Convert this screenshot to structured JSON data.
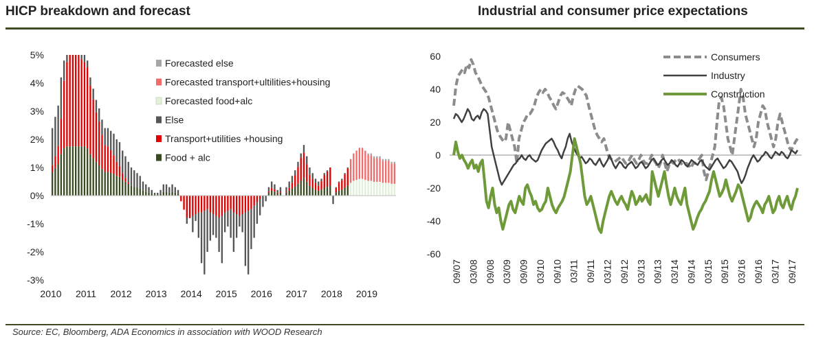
{
  "left_title": "HICP breakdown and forecast",
  "right_title": "Industrial and consumer price expectations",
  "source": "Source: EC, Bloomberg, ADA Economics in association with WOOD Research",
  "chart_data": [
    {
      "type": "bar",
      "title": "HICP breakdown and forecast",
      "stacked": true,
      "ylim": [
        -3,
        5
      ],
      "yticks": [
        "-3%",
        "-2%",
        "-1%",
        "0%",
        "1%",
        "2%",
        "3%",
        "4%",
        "5%"
      ],
      "ytick_values": [
        -3,
        -2,
        -1,
        0,
        1,
        2,
        3,
        4,
        5
      ],
      "xticks": [
        "2010",
        "2011",
        "2012",
        "2013",
        "2014",
        "2015",
        "2016",
        "2017",
        "2018",
        "2019"
      ],
      "legend_position": "top-right",
      "legend": [
        {
          "name": "Forecasted else",
          "color": "#a6a6a6"
        },
        {
          "name": "Forecasted transport+ultilities+housing",
          "color": "#f26b6b"
        },
        {
          "name": "Forecasted food+alc",
          "color": "#e2efda"
        },
        {
          "name": "Else",
          "color": "#555555"
        },
        {
          "name": "Transport+utilities +housing",
          "color": "#e00000"
        },
        {
          "name": "Food + alc",
          "color": "#3a4a20"
        }
      ],
      "x_start": "2010-01",
      "frequency": "monthly",
      "forecast_start": "2018-07",
      "totals": [
        2.4,
        2.8,
        3.2,
        4.2,
        4.8,
        5.0,
        5.0,
        5.0,
        5.0,
        5.0,
        5.0,
        5.0,
        4.8,
        4.2,
        3.8,
        3.4,
        3.1,
        2.7,
        2.4,
        2.4,
        2.3,
        2.2,
        2.0,
        1.9,
        1.6,
        1.4,
        1.2,
        1.0,
        0.9,
        0.8,
        0.7,
        0.5,
        0.4,
        0.3,
        0.2,
        0.1,
        0.1,
        0.2,
        0.4,
        0.4,
        0.3,
        0.4,
        0.3,
        0.2,
        -0.2,
        -0.5,
        -1.0,
        -0.8,
        -1.3,
        -0.9,
        -1.5,
        -2.4,
        -2.8,
        -2.0,
        -1.6,
        -1.4,
        -1.5,
        -2.0,
        -2.4,
        -1.3,
        -1.1,
        -1.5,
        -2.0,
        -1.5,
        -1.1,
        -1.3,
        -2.5,
        -2.8,
        -1.9,
        -1.5,
        -1.0,
        -0.7,
        -0.4,
        -0.2,
        0.3,
        0.5,
        0.4,
        0.2,
        0.3,
        0.0,
        0.3,
        0.5,
        0.7,
        0.9,
        1.2,
        1.5,
        1.8,
        1.4,
        1.0,
        0.8,
        0.6,
        0.5,
        0.6,
        0.8,
        0.9,
        1.0,
        -0.3,
        0.3,
        0.5,
        0.6,
        0.8,
        1.0,
        1.3,
        1.5,
        1.6,
        1.7,
        1.7,
        1.6,
        1.5,
        1.5,
        1.4,
        1.4,
        1.4,
        1.3,
        1.3,
        1.3,
        1.2,
        1.2
      ],
      "transport_share": [
        0.1,
        0.15,
        0.2,
        0.3,
        0.5,
        0.6,
        0.68,
        0.7,
        0.68,
        0.65,
        0.62,
        0.6,
        0.6,
        0.58,
        0.55,
        0.52,
        0.5,
        0.45,
        0.4,
        0.38,
        0.35,
        0.3,
        0.25,
        0.2,
        0.15,
        0.1,
        0.05,
        0.0,
        -0.05,
        -0.1,
        -0.2,
        -0.25,
        -0.3,
        -0.35,
        -0.4,
        -0.45,
        -0.5,
        -0.4,
        -0.3,
        -0.2,
        -0.3,
        -0.4,
        -0.45,
        -0.5,
        -0.55,
        -0.6,
        -0.65,
        -0.7,
        -0.6,
        -0.55,
        -0.5,
        -0.5,
        -0.45,
        -0.4,
        -0.5,
        -0.55,
        -0.6,
        -0.65,
        -0.6,
        -0.5,
        -0.45,
        -0.4,
        -0.5,
        -0.55,
        -0.6,
        -0.55,
        -0.5,
        -0.45,
        -0.4,
        -0.3,
        -0.2,
        -0.1,
        0.0,
        0.1,
        0.15,
        0.2,
        0.2,
        0.15,
        0.1,
        0.05,
        0.1,
        0.2,
        0.3,
        0.45,
        0.5,
        0.55,
        0.5,
        0.45,
        0.4,
        0.4,
        0.4,
        0.35,
        0.5,
        0.55,
        0.6,
        0.65,
        0.55,
        0.55,
        0.55,
        0.55,
        0.6,
        0.62,
        0.65,
        0.68,
        0.68,
        0.68,
        0.66,
        0.64,
        0.62,
        0.6,
        0.6,
        0.6,
        0.6,
        0.6,
        0.6,
        0.6,
        0.6,
        0.6,
        0.6,
        0.6
      ]
    },
    {
      "type": "line",
      "title": "Industrial and consumer price expectations",
      "ylim": [
        -60,
        60
      ],
      "yticks": [
        -60,
        -40,
        -20,
        0,
        20,
        40,
        60
      ],
      "xticks": [
        "09/07",
        "03/08",
        "09/08",
        "03/09",
        "09/09",
        "03/10",
        "09/10",
        "03/11",
        "09/11",
        "03/12",
        "09/12",
        "03/13",
        "09/13",
        "03/14",
        "09/14",
        "03/15",
        "09/15",
        "03/16",
        "09/16",
        "03/17",
        "09/17"
      ],
      "legend_position": "top-right",
      "series": [
        {
          "name": "Consumers",
          "color": "#8c8c8c",
          "style": "dashed",
          "values": [
            30,
            42,
            48,
            50,
            52,
            50,
            55,
            53,
            58,
            55,
            50,
            48,
            45,
            42,
            40,
            38,
            35,
            30,
            25,
            20,
            15,
            12,
            10,
            8,
            10,
            20,
            15,
            10,
            5,
            -5,
            10,
            15,
            20,
            22,
            25,
            25,
            27,
            30,
            35,
            38,
            40,
            38,
            40,
            38,
            35,
            33,
            30,
            28,
            32,
            36,
            38,
            37,
            35,
            33,
            30,
            36,
            40,
            42,
            41,
            40,
            38,
            36,
            30,
            25,
            20,
            15,
            12,
            10,
            8,
            10,
            5,
            0,
            -2,
            -3,
            -4,
            -3,
            -2,
            -1,
            -3,
            -5,
            -5,
            -2,
            0,
            -3,
            -5,
            -3,
            0,
            -3,
            -5,
            -5,
            -3,
            0,
            -3,
            -5,
            -8,
            -5,
            0,
            -5,
            -10,
            -6,
            -4,
            -5,
            -3,
            -2,
            -4,
            -6,
            -5,
            -5,
            -6,
            -8,
            -5,
            -5,
            -4,
            -2,
            0,
            -10,
            -15,
            -10,
            -5,
            0,
            5,
            20,
            33,
            35,
            30,
            20,
            10,
            5,
            0,
            10,
            20,
            30,
            40,
            35,
            25,
            20,
            15,
            10,
            5,
            10,
            20,
            25,
            30,
            28,
            20,
            15,
            10,
            5,
            10,
            20,
            25,
            20,
            15,
            10,
            5,
            3,
            5,
            8,
            10
          ]
        },
        {
          "name": "Industry",
          "color": "#404040",
          "style": "solid",
          "values": [
            22,
            25,
            24,
            22,
            20,
            22,
            25,
            28,
            26,
            22,
            21,
            23,
            24,
            22,
            26,
            28,
            27,
            25,
            15,
            5,
            0,
            -5,
            -10,
            -15,
            -18,
            -16,
            -14,
            -12,
            -10,
            -8,
            -6,
            -5,
            -3,
            -2,
            0,
            -2,
            -3,
            -1,
            0,
            -2,
            -3,
            -4,
            -3,
            0,
            3,
            5,
            7,
            8,
            9,
            10,
            8,
            5,
            3,
            0,
            -2,
            2,
            5,
            10,
            13,
            8,
            5,
            2,
            0,
            -2,
            -1,
            -3,
            -5,
            -4,
            -2,
            -3,
            -5,
            -6,
            -4,
            -2,
            -5,
            -7,
            -5,
            -3,
            0,
            -3,
            -6,
            -8,
            -6,
            -4,
            -5,
            -7,
            -8,
            -6,
            -5,
            -4,
            -6,
            -8,
            -7,
            -5,
            -4,
            -6,
            -8,
            -7,
            -5,
            -3,
            -2,
            -4,
            -6,
            -5,
            -3,
            -2,
            -4,
            -6,
            -5,
            -3,
            -4,
            -6,
            -7,
            -5,
            -3,
            -4,
            -6,
            -7,
            -5,
            -3,
            -4,
            -5,
            -6,
            -4,
            -3,
            -5,
            -7,
            -8,
            -9,
            -7,
            -5,
            -3,
            -2,
            -4,
            -6,
            -8,
            -7,
            -5,
            -3,
            -4,
            -6,
            -8,
            -10,
            -14,
            -17,
            -15,
            -12,
            -8,
            -5,
            -2,
            0,
            -2,
            -4,
            -3,
            -1,
            0,
            2,
            1,
            -1,
            -2,
            0,
            2,
            1,
            0,
            2,
            1,
            -1,
            -2,
            0,
            3,
            2,
            1,
            3
          ]
        },
        {
          "name": "Construction",
          "color": "#6f9a3a",
          "style": "solid",
          "values": [
            0,
            8,
            2,
            -2,
            0,
            -3,
            -5,
            -8,
            -5,
            -3,
            -8,
            -6,
            -10,
            -5,
            -3,
            -15,
            -28,
            -32,
            -25,
            -20,
            -30,
            -35,
            -32,
            -40,
            -45,
            -40,
            -35,
            -30,
            -28,
            -33,
            -35,
            -30,
            -25,
            -28,
            -30,
            -20,
            -18,
            -22,
            -25,
            -30,
            -28,
            -32,
            -34,
            -33,
            -30,
            -28,
            -20,
            -25,
            -30,
            -33,
            -35,
            -32,
            -30,
            -28,
            -25,
            -20,
            -15,
            -10,
            0,
            10,
            5,
            0,
            -5,
            -15,
            -25,
            -30,
            -28,
            -25,
            -30,
            -35,
            -40,
            -45,
            -47,
            -40,
            -35,
            -30,
            -25,
            -22,
            -25,
            -28,
            -30,
            -27,
            -25,
            -28,
            -30,
            -33,
            -27,
            -22,
            -25,
            -30,
            -28,
            -25,
            -28,
            -26,
            -24,
            -28,
            -30,
            -10,
            -15,
            -20,
            -25,
            -20,
            -15,
            -10,
            -18,
            -25,
            -30,
            -25,
            -20,
            -25,
            -28,
            -30,
            -25,
            -20,
            -30,
            -35,
            -40,
            -45,
            -42,
            -38,
            -35,
            -33,
            -30,
            -28,
            -25,
            -22,
            -15,
            -10,
            -15,
            -20,
            -25,
            -23,
            -20,
            -15,
            -20,
            -25,
            -28,
            -25,
            -22,
            -18,
            -20,
            -25,
            -30,
            -35,
            -40,
            -38,
            -33,
            -30,
            -28,
            -30,
            -32,
            -35,
            -30,
            -28,
            -25,
            -30,
            -35,
            -33,
            -28,
            -25,
            -30,
            -32,
            -28,
            -25,
            -30,
            -33,
            -28,
            -25,
            -20
          ]
        }
      ]
    }
  ]
}
